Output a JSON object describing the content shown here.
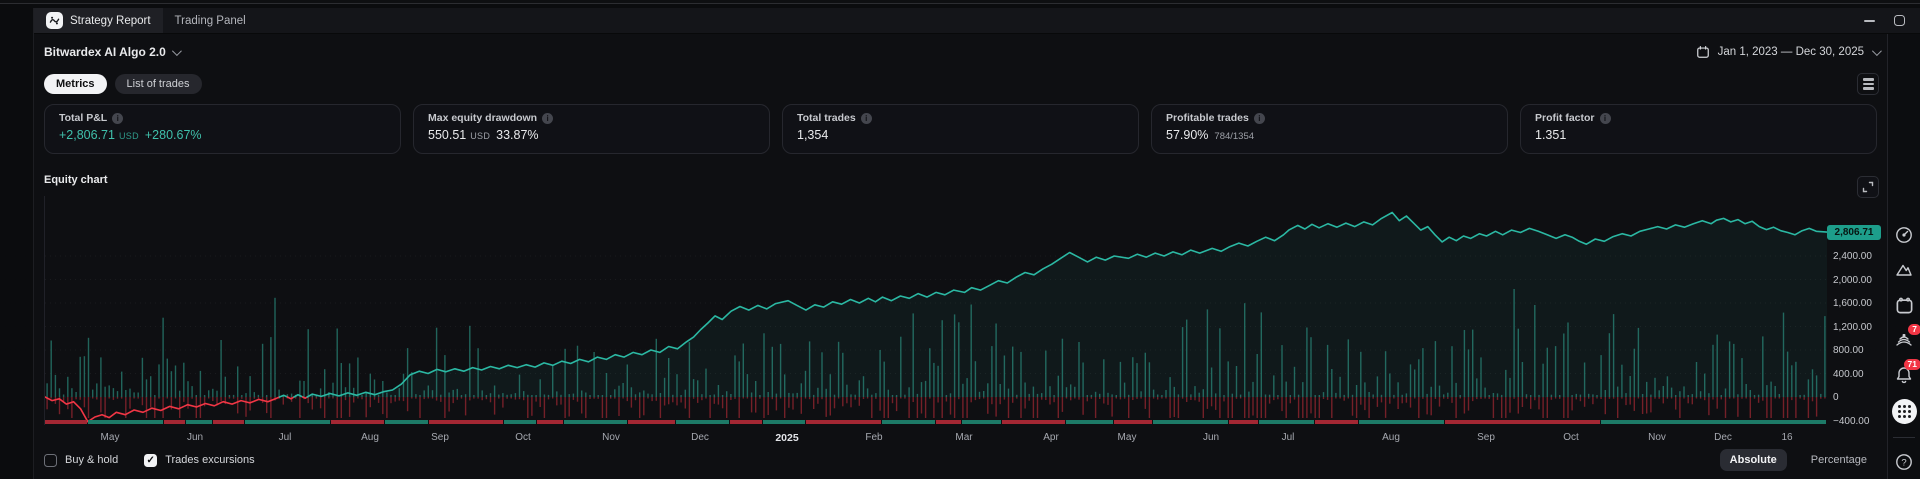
{
  "window": {
    "tabs": [
      {
        "label": "Strategy Report",
        "active": true
      },
      {
        "label": "Trading Panel",
        "active": false
      }
    ],
    "controls": [
      "minimize",
      "restore"
    ]
  },
  "header": {
    "strategy_name": "Bitwardex AI Algo 2.0",
    "date_range": "Jan 1, 2023 — Dec 30, 2025"
  },
  "view_toggle": {
    "metrics": "Metrics",
    "list_of_trades": "List of trades"
  },
  "metrics_cards": [
    {
      "label": "Total P&L",
      "value": "+2,806.71",
      "unit": "USD",
      "sub": "+280.67%",
      "sub_variant": "strong"
    },
    {
      "label": "Max equity drawdown",
      "value": "550.51",
      "unit": "USD",
      "sub": "33.87%",
      "sub_variant": "strong"
    },
    {
      "label": "Total trades",
      "value": "1,354",
      "unit": "",
      "sub": "",
      "sub_variant": "muted"
    },
    {
      "label": "Profitable trades",
      "value": "57.90%",
      "unit": "",
      "sub": "784/1354",
      "sub_variant": "muted"
    },
    {
      "label": "Profit factor",
      "value": "1.351",
      "unit": "",
      "sub": "",
      "sub_variant": "muted"
    }
  ],
  "equity_chart": {
    "title": "Equity chart",
    "type": "line",
    "last_value_label": "2,806.71",
    "ylim": [
      -476,
      3421
    ],
    "y_axis_labels": [
      {
        "text": "2,400.00",
        "v": 2400
      },
      {
        "text": "2,000.00",
        "v": 2000
      },
      {
        "text": "1,600.00",
        "v": 1600
      },
      {
        "text": "1,200.00",
        "v": 1200
      },
      {
        "text": "800.00",
        "v": 800
      },
      {
        "text": "400.00",
        "v": 400
      },
      {
        "text": "0",
        "v": 0
      },
      {
        "text": "−400.00",
        "v": -400
      }
    ],
    "x_labels": [
      {
        "text": "May",
        "f": 0.037
      },
      {
        "text": "Jun",
        "f": 0.085
      },
      {
        "text": "Jul",
        "f": 0.135
      },
      {
        "text": "Aug",
        "f": 0.183
      },
      {
        "text": "Sep",
        "f": 0.222
      },
      {
        "text": "Oct",
        "f": 0.269
      },
      {
        "text": "Nov",
        "f": 0.318
      },
      {
        "text": "Dec",
        "f": 0.368
      },
      {
        "text": "2025",
        "f": 0.417,
        "year": true
      },
      {
        "text": "Feb",
        "f": 0.466
      },
      {
        "text": "Mar",
        "f": 0.516
      },
      {
        "text": "Apr",
        "f": 0.565
      },
      {
        "text": "May",
        "f": 0.608
      },
      {
        "text": "Jun",
        "f": 0.655
      },
      {
        "text": "Jul",
        "f": 0.698
      },
      {
        "text": "Aug",
        "f": 0.756
      },
      {
        "text": "Sep",
        "f": 0.809
      },
      {
        "text": "Oct",
        "f": 0.857
      },
      {
        "text": "Nov",
        "f": 0.905
      },
      {
        "text": "Dec",
        "f": 0.942
      },
      {
        "text": "16",
        "f": 0.978
      }
    ],
    "series": [
      [
        0,
        0
      ],
      [
        0.004,
        -60
      ],
      [
        0.008,
        -30
      ],
      [
        0.012,
        -120
      ],
      [
        0.016,
        -80
      ],
      [
        0.02,
        -200
      ],
      [
        0.024,
        -420
      ],
      [
        0.028,
        -340
      ],
      [
        0.032,
        -300
      ],
      [
        0.036,
        -350
      ],
      [
        0.04,
        -260
      ],
      [
        0.045,
        -300
      ],
      [
        0.05,
        -220
      ],
      [
        0.055,
        -260
      ],
      [
        0.06,
        -190
      ],
      [
        0.065,
        -230
      ],
      [
        0.07,
        -160
      ],
      [
        0.075,
        -200
      ],
      [
        0.08,
        -130
      ],
      [
        0.085,
        -170
      ],
      [
        0.09,
        -110
      ],
      [
        0.095,
        -150
      ],
      [
        0.1,
        -80
      ],
      [
        0.105,
        -120
      ],
      [
        0.11,
        -60
      ],
      [
        0.115,
        -100
      ],
      [
        0.12,
        -40
      ],
      [
        0.125,
        -80
      ],
      [
        0.13,
        -20
      ],
      [
        0.134,
        30
      ],
      [
        0.138,
        -30
      ],
      [
        0.142,
        40
      ],
      [
        0.146,
        -20
      ],
      [
        0.15,
        50
      ],
      [
        0.155,
        10
      ],
      [
        0.16,
        60
      ],
      [
        0.165,
        20
      ],
      [
        0.17,
        70
      ],
      [
        0.175,
        30
      ],
      [
        0.18,
        80
      ],
      [
        0.185,
        40
      ],
      [
        0.19,
        90
      ],
      [
        0.195,
        120
      ],
      [
        0.2,
        220
      ],
      [
        0.205,
        380
      ],
      [
        0.21,
        440
      ],
      [
        0.215,
        400
      ],
      [
        0.22,
        470
      ],
      [
        0.225,
        430
      ],
      [
        0.23,
        480
      ],
      [
        0.235,
        440
      ],
      [
        0.24,
        500
      ],
      [
        0.245,
        460
      ],
      [
        0.25,
        520
      ],
      [
        0.255,
        480
      ],
      [
        0.26,
        540
      ],
      [
        0.265,
        500
      ],
      [
        0.27,
        550
      ],
      [
        0.275,
        510
      ],
      [
        0.28,
        580
      ],
      [
        0.285,
        540
      ],
      [
        0.29,
        610
      ],
      [
        0.295,
        570
      ],
      [
        0.3,
        640
      ],
      [
        0.305,
        600
      ],
      [
        0.31,
        680
      ],
      [
        0.315,
        640
      ],
      [
        0.32,
        720
      ],
      [
        0.325,
        680
      ],
      [
        0.33,
        760
      ],
      [
        0.335,
        720
      ],
      [
        0.34,
        800
      ],
      [
        0.345,
        760
      ],
      [
        0.35,
        860
      ],
      [
        0.355,
        820
      ],
      [
        0.36,
        940
      ],
      [
        0.364,
        1020
      ],
      [
        0.368,
        1150
      ],
      [
        0.372,
        1260
      ],
      [
        0.376,
        1380
      ],
      [
        0.38,
        1320
      ],
      [
        0.385,
        1460
      ],
      [
        0.39,
        1540
      ],
      [
        0.395,
        1480
      ],
      [
        0.4,
        1560
      ],
      [
        0.405,
        1500
      ],
      [
        0.41,
        1590
      ],
      [
        0.417,
        1640
      ],
      [
        0.422,
        1560
      ],
      [
        0.427,
        1480
      ],
      [
        0.432,
        1570
      ],
      [
        0.437,
        1530
      ],
      [
        0.442,
        1620
      ],
      [
        0.447,
        1580
      ],
      [
        0.452,
        1660
      ],
      [
        0.457,
        1600
      ],
      [
        0.462,
        1680
      ],
      [
        0.466,
        1620
      ],
      [
        0.47,
        1700
      ],
      [
        0.475,
        1640
      ],
      [
        0.48,
        1720
      ],
      [
        0.485,
        1680
      ],
      [
        0.49,
        1760
      ],
      [
        0.495,
        1700
      ],
      [
        0.5,
        1780
      ],
      [
        0.505,
        1740
      ],
      [
        0.51,
        1820
      ],
      [
        0.516,
        1780
      ],
      [
        0.52,
        1860
      ],
      [
        0.525,
        1820
      ],
      [
        0.53,
        1900
      ],
      [
        0.535,
        1980
      ],
      [
        0.54,
        1940
      ],
      [
        0.545,
        2040
      ],
      [
        0.55,
        2120
      ],
      [
        0.555,
        2080
      ],
      [
        0.56,
        2180
      ],
      [
        0.565,
        2260
      ],
      [
        0.57,
        2360
      ],
      [
        0.575,
        2460
      ],
      [
        0.58,
        2380
      ],
      [
        0.585,
        2300
      ],
      [
        0.59,
        2380
      ],
      [
        0.595,
        2330
      ],
      [
        0.6,
        2400
      ],
      [
        0.608,
        2360
      ],
      [
        0.613,
        2430
      ],
      [
        0.618,
        2380
      ],
      [
        0.623,
        2450
      ],
      [
        0.628,
        2400
      ],
      [
        0.633,
        2470
      ],
      [
        0.638,
        2420
      ],
      [
        0.643,
        2500
      ],
      [
        0.648,
        2450
      ],
      [
        0.655,
        2530
      ],
      [
        0.66,
        2480
      ],
      [
        0.665,
        2560
      ],
      [
        0.67,
        2620
      ],
      [
        0.675,
        2570
      ],
      [
        0.68,
        2650
      ],
      [
        0.685,
        2720
      ],
      [
        0.69,
        2660
      ],
      [
        0.695,
        2760
      ],
      [
        0.698,
        2840
      ],
      [
        0.703,
        2920
      ],
      [
        0.707,
        2860
      ],
      [
        0.711,
        2940
      ],
      [
        0.715,
        2880
      ],
      [
        0.72,
        2950
      ],
      [
        0.725,
        2890
      ],
      [
        0.73,
        2960
      ],
      [
        0.735,
        2900
      ],
      [
        0.74,
        2980
      ],
      [
        0.745,
        2930
      ],
      [
        0.75,
        3040
      ],
      [
        0.756,
        3140
      ],
      [
        0.76,
        3000
      ],
      [
        0.764,
        3080
      ],
      [
        0.768,
        2960
      ],
      [
        0.772,
        2840
      ],
      [
        0.776,
        2900
      ],
      [
        0.78,
        2760
      ],
      [
        0.784,
        2640
      ],
      [
        0.788,
        2720
      ],
      [
        0.792,
        2660
      ],
      [
        0.796,
        2740
      ],
      [
        0.8,
        2700
      ],
      [
        0.805,
        2780
      ],
      [
        0.809,
        2740
      ],
      [
        0.814,
        2820
      ],
      [
        0.818,
        2760
      ],
      [
        0.823,
        2840
      ],
      [
        0.828,
        2800
      ],
      [
        0.833,
        2870
      ],
      [
        0.838,
        2820
      ],
      [
        0.843,
        2760
      ],
      [
        0.848,
        2700
      ],
      [
        0.853,
        2760
      ],
      [
        0.857,
        2720
      ],
      [
        0.861,
        2650
      ],
      [
        0.865,
        2600
      ],
      [
        0.87,
        2690
      ],
      [
        0.875,
        2650
      ],
      [
        0.88,
        2730
      ],
      [
        0.885,
        2780
      ],
      [
        0.89,
        2740
      ],
      [
        0.895,
        2820
      ],
      [
        0.9,
        2860
      ],
      [
        0.905,
        2900
      ],
      [
        0.91,
        2860
      ],
      [
        0.915,
        2930
      ],
      [
        0.92,
        2890
      ],
      [
        0.925,
        2950
      ],
      [
        0.93,
        3000
      ],
      [
        0.935,
        2950
      ],
      [
        0.938,
        3010
      ],
      [
        0.942,
        3040
      ],
      [
        0.946,
        2980
      ],
      [
        0.95,
        3020
      ],
      [
        0.954,
        2950
      ],
      [
        0.958,
        2990
      ],
      [
        0.962,
        2900
      ],
      [
        0.966,
        2850
      ],
      [
        0.97,
        2890
      ],
      [
        0.974,
        2830
      ],
      [
        0.978,
        2800
      ],
      [
        0.982,
        2760
      ],
      [
        0.986,
        2830
      ],
      [
        0.99,
        2870
      ],
      [
        0.994,
        2820
      ],
      [
        1,
        2806.7
      ]
    ],
    "excursions": {
      "count": 430,
      "seed": 11
    },
    "position_strip": [
      {
        "c": "r",
        "w": 2.0
      },
      {
        "c": "g",
        "w": 3.5
      },
      {
        "c": "r",
        "w": 1.0
      },
      {
        "c": "g",
        "w": 1.2
      },
      {
        "c": "r",
        "w": 1.5
      },
      {
        "c": "g",
        "w": 4.0
      },
      {
        "c": "r",
        "w": 2.5
      },
      {
        "c": "g",
        "w": 2.0
      },
      {
        "c": "r",
        "w": 3.5
      },
      {
        "c": "g",
        "w": 1.5
      },
      {
        "c": "r",
        "w": 1.2
      },
      {
        "c": "g",
        "w": 3.0
      },
      {
        "c": "r",
        "w": 2.2
      },
      {
        "c": "g",
        "w": 2.5
      },
      {
        "c": "r",
        "w": 1.5
      },
      {
        "c": "g",
        "w": 2.0
      },
      {
        "c": "r",
        "w": 3.5
      },
      {
        "c": "g",
        "w": 2.5
      },
      {
        "c": "r",
        "w": 1.2
      },
      {
        "c": "g",
        "w": 1.8
      },
      {
        "c": "r",
        "w": 3.0
      },
      {
        "c": "g",
        "w": 2.2
      },
      {
        "c": "r",
        "w": 1.8
      },
      {
        "c": "g",
        "w": 3.5
      },
      {
        "c": "r",
        "w": 1.4
      },
      {
        "c": "g",
        "w": 2.6
      },
      {
        "c": "r",
        "w": 2.0
      },
      {
        "c": "g",
        "w": 4.0
      },
      {
        "c": "r",
        "w": 7.3
      },
      {
        "c": "g",
        "w": 10.6
      }
    ],
    "colors": {
      "line_positive": "#2bb8a3",
      "line_negative": "#f23645",
      "area_fill": "rgba(38,166,154,0.07)",
      "bar_up": "rgba(50,172,152,0.55)",
      "bar_down": "rgba(242,54,69,0.45)",
      "strip_red": "#a32733",
      "strip_green": "#1d7a67",
      "badge_bg": "#1d9e8b"
    }
  },
  "chart_footer": {
    "checkboxes": [
      {
        "label": "Buy & hold",
        "checked": false
      },
      {
        "label": "Trades excursions",
        "checked": true
      }
    ],
    "mode_toggle": [
      {
        "label": "Absolute",
        "active": true
      },
      {
        "label": "Percentage",
        "active": false
      }
    ]
  },
  "sidebar": {
    "icons": [
      "radar-icon",
      "shapes-icon",
      "calendar-icon",
      "broadcast-icon",
      "bell-icon",
      "apps-grid-icon",
      "help-icon"
    ],
    "badges": {
      "broadcast": "7",
      "notifications": "71"
    }
  }
}
